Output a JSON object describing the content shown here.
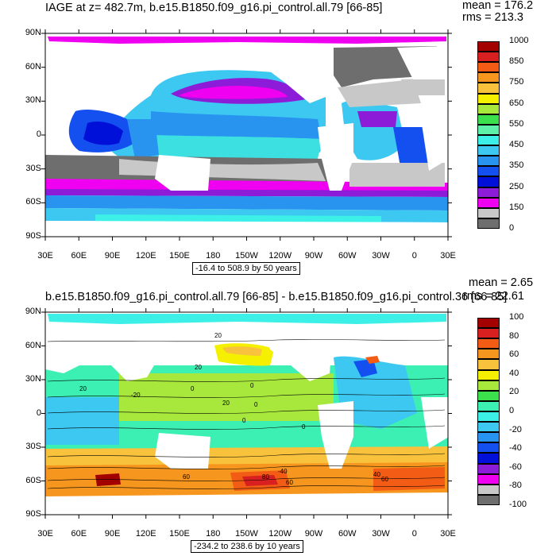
{
  "colors": {
    "land": "#ffffff",
    "frame": "#000000"
  },
  "panels": [
    {
      "title": "IAGE at z= 482.7m, b.e15.B1850.f09_g16.pi_control.all.79 [66-85]",
      "mean": "mean = 176.2",
      "rms": "rms = 213.3",
      "range": "-16.4 to 508.9 by 50 years",
      "lat_labels": [
        "90N",
        "60N",
        "30N",
        "0",
        "30S",
        "60S",
        "90S"
      ],
      "lon_labels": [
        "30E",
        "60E",
        "90E",
        "120E",
        "150E",
        "180",
        "150W",
        "120W",
        "90W",
        "60W",
        "30W",
        "0",
        "30E"
      ],
      "colorbar": {
        "labels": [
          "1000",
          "850",
          "750",
          "650",
          "550",
          "450",
          "350",
          "250",
          "150",
          "0"
        ],
        "colors": [
          "#a30000",
          "#d82020",
          "#f25c14",
          "#f7961e",
          "#f8c23c",
          "#f4f000",
          "#a8e83c",
          "#3ce04c",
          "#5ef0a8",
          "#3cf0e8",
          "#3cc8f0",
          "#2894f0",
          "#1450f0",
          "#0010d8",
          "#8c1cd8",
          "#f000f0",
          "#c8c8c8",
          "#6e6e6e"
        ]
      }
    },
    {
      "title": "b.e15.B1850.f09_g16.pi_control.all.79 [66-85] - b.e15.B1850.f09_g16.pi_control.36 [66-85]",
      "mean": "mean = 2.65",
      "rms": "rms = 22.61",
      "range": "-234.2 to 238.6 by 10 years",
      "lat_labels": [
        "90N",
        "60N",
        "30N",
        "0",
        "30S",
        "60S",
        "90S"
      ],
      "lon_labels": [
        "30E",
        "60E",
        "90E",
        "120E",
        "150E",
        "180",
        "150W",
        "120W",
        "90W",
        "60W",
        "30W",
        "0",
        "30E"
      ],
      "colorbar": {
        "labels": [
          "100",
          "80",
          "60",
          "40",
          "20",
          "0",
          "-20",
          "-40",
          "-60",
          "-80",
          "-100"
        ],
        "colors": [
          "#a30000",
          "#d82020",
          "#f25c14",
          "#f7961e",
          "#f8c23c",
          "#f4f000",
          "#a8e83c",
          "#3ce04c",
          "#3cf0b4",
          "#3cf0e8",
          "#3cc8f0",
          "#2894f0",
          "#1450f0",
          "#0010d8",
          "#8c1cd8",
          "#f000f0",
          "#c8c8c8",
          "#6e6e6e"
        ]
      },
      "contour_labels": [
        "20",
        "20",
        "0",
        "0",
        "20",
        "0",
        "0",
        "0",
        "-20",
        "60",
        "60",
        "-40",
        "80",
        "40",
        "20",
        "60"
      ]
    }
  ]
}
